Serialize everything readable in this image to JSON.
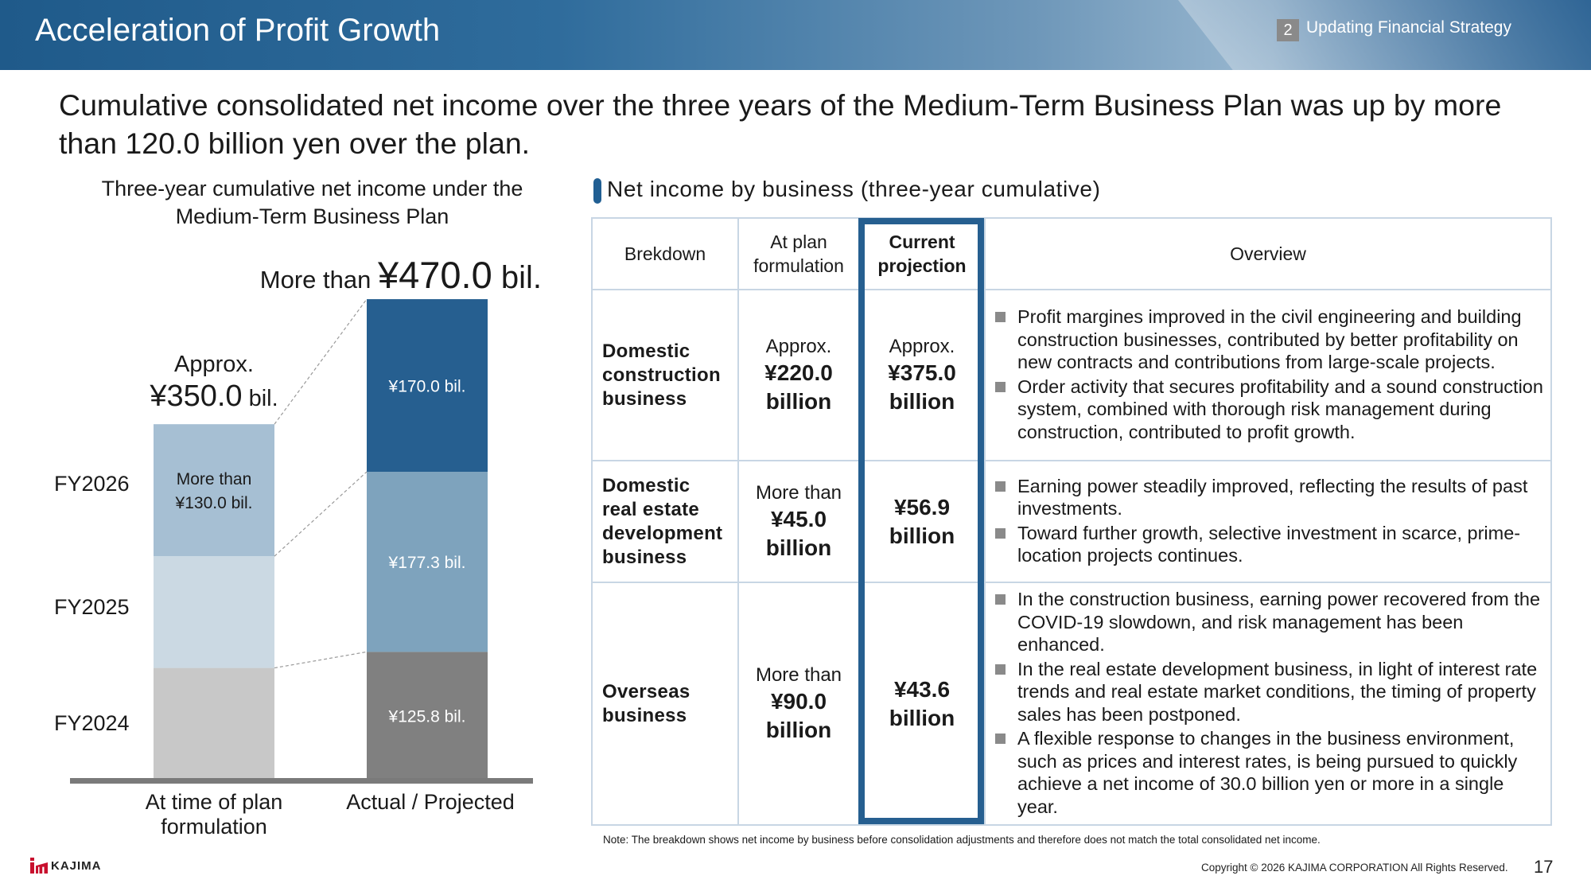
{
  "header": {
    "title": "Acceleration of Profit Growth",
    "section_number": "2",
    "section_title": "Updating Financial Strategy"
  },
  "headline": "Cumulative consolidated net income over the three years of the Medium-Term Business Plan was up by more than 120.0 billion yen over the plan.",
  "chart_data": {
    "type": "bar",
    "stacked": true,
    "title": "Three-year cumulative net income under the Medium-Term Business Plan",
    "unit": "¥ billion",
    "categories": [
      "At time of plan formulation",
      "Actual / Projected"
    ],
    "stack_labels": [
      "FY2024",
      "FY2025",
      "FY2026"
    ],
    "series": [
      {
        "name": "FY2024",
        "values": [
          110,
          125.8
        ],
        "labels": [
          "",
          "¥125.8 bil."
        ],
        "colors": [
          "#c8c8c8",
          "#808080"
        ]
      },
      {
        "name": "FY2025",
        "values": [
          110,
          177.3
        ],
        "labels": [
          "",
          "¥177.3 bil."
        ],
        "colors": [
          "#cbd9e3",
          "#7ea3bd"
        ]
      },
      {
        "name": "FY2026",
        "values": [
          130,
          170.0
        ],
        "labels": [
          "More than\n¥130.0 bil.",
          "¥170.0 bil."
        ],
        "colors": [
          "#a6bfd3",
          "#265f90"
        ]
      }
    ],
    "totals": [
      {
        "pre": "Approx.",
        "value": "¥350.0",
        "suffix": " bil."
      },
      {
        "pre": "More than ",
        "value": "¥470.0",
        "suffix": " bil."
      }
    ],
    "ylim": [
      0,
      480
    ]
  },
  "table": {
    "section_title": "Net income by business (three-year cumulative)",
    "headers": {
      "breakdown": "Brekdown",
      "plan": [
        "At plan",
        "formulation"
      ],
      "current": [
        "Current",
        "projection"
      ],
      "overview": "Overview"
    },
    "rows": [
      {
        "name": [
          "Domestic",
          "construction",
          "business"
        ],
        "plan_pre": "Approx.",
        "plan_val": [
          "¥220.0",
          "billion"
        ],
        "cur_pre": "Approx.",
        "cur_val": [
          "¥375.0",
          "billion"
        ],
        "overview": [
          "Profit margines improved in the civil engineering and building construction businesses, contributed by better profitability on new contracts and contributions from large-scale projects.",
          "Order activity that secures profitability and a sound construction system, combined with thorough risk management during construction, contributed to profit growth."
        ]
      },
      {
        "name": [
          "Domestic",
          "real estate",
          "development",
          "business"
        ],
        "plan_pre": "More than",
        "plan_val": [
          "¥45.0",
          "billion"
        ],
        "cur_pre": "",
        "cur_val": [
          "¥56.9",
          "billion"
        ],
        "overview": [
          "Earning power steadily improved, reflecting the results of past investments.",
          "Toward further growth, selective investment in scarce, prime-location projects continues."
        ]
      },
      {
        "name": [
          "Overseas",
          "business"
        ],
        "plan_pre": "More than",
        "plan_val": [
          "¥90.0",
          "billion"
        ],
        "cur_pre": "",
        "cur_val": [
          "¥43.6",
          "billion"
        ],
        "overview": [
          "In the construction business, earning power recovered from the COVID-19 slowdown, and risk management has been enhanced.",
          "In the real estate development business, in light of interest rate trends and real estate market conditions, the timing of property sales has been postponed.",
          "A flexible response to changes in the business environment, such as prices and interest rates, is being pursued to quickly achieve a net income of 30.0 billion yen or more in a single year."
        ]
      }
    ],
    "note": "Note: The breakdown shows net income by business before consolidation adjustments and therefore does not match the total consolidated net income."
  },
  "footer": {
    "logo_text": "KAJIMA",
    "copyright": "Copyright © 2026 KAJIMA CORPORATION All Rights Reserved.",
    "page": "17"
  },
  "colors": {
    "header_blue": "#1f5a8a",
    "highlight": "#265f90"
  }
}
